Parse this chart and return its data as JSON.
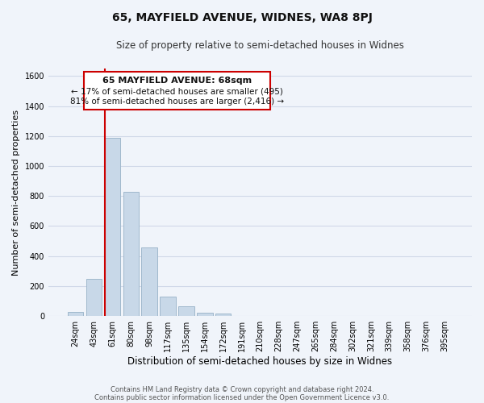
{
  "title_line1": "65, MAYFIELD AVENUE, WIDNES, WA8 8PJ",
  "title_line2": "Size of property relative to semi-detached houses in Widnes",
  "xlabel": "Distribution of semi-detached houses by size in Widnes",
  "ylabel": "Number of semi-detached properties",
  "footer_line1": "Contains HM Land Registry data © Crown copyright and database right 2024.",
  "footer_line2": "Contains public sector information licensed under the Open Government Licence v3.0.",
  "bar_labels": [
    "24sqm",
    "43sqm",
    "61sqm",
    "80sqm",
    "98sqm",
    "117sqm",
    "135sqm",
    "154sqm",
    "172sqm",
    "191sqm",
    "210sqm",
    "228sqm",
    "247sqm",
    "265sqm",
    "284sqm",
    "302sqm",
    "321sqm",
    "339sqm",
    "358sqm",
    "376sqm",
    "395sqm"
  ],
  "bar_values": [
    30,
    250,
    1190,
    830,
    455,
    130,
    68,
    25,
    18,
    0,
    0,
    0,
    0,
    0,
    0,
    0,
    0,
    0,
    0,
    0,
    0
  ],
  "bar_color": "#c8d8e8",
  "bar_edge_color": "#a0b8cc",
  "grid_color": "#d0d8e8",
  "annotation_box_text_line1": "65 MAYFIELD AVENUE: 68sqm",
  "annotation_box_text_line2": "← 17% of semi-detached houses are smaller (495)",
  "annotation_box_text_line3": "81% of semi-detached houses are larger (2,416) →",
  "marker_color": "#cc0000",
  "ylim": [
    0,
    1650
  ],
  "yticks": [
    0,
    200,
    400,
    600,
    800,
    1000,
    1200,
    1400,
    1600
  ],
  "background_color": "#f0f4fa",
  "title1_fontsize": 10,
  "title2_fontsize": 8.5,
  "ylabel_fontsize": 8,
  "xlabel_fontsize": 8.5,
  "tick_fontsize": 7,
  "footer_fontsize": 6,
  "annot_fontsize1": 8,
  "annot_fontsize2": 7.5
}
